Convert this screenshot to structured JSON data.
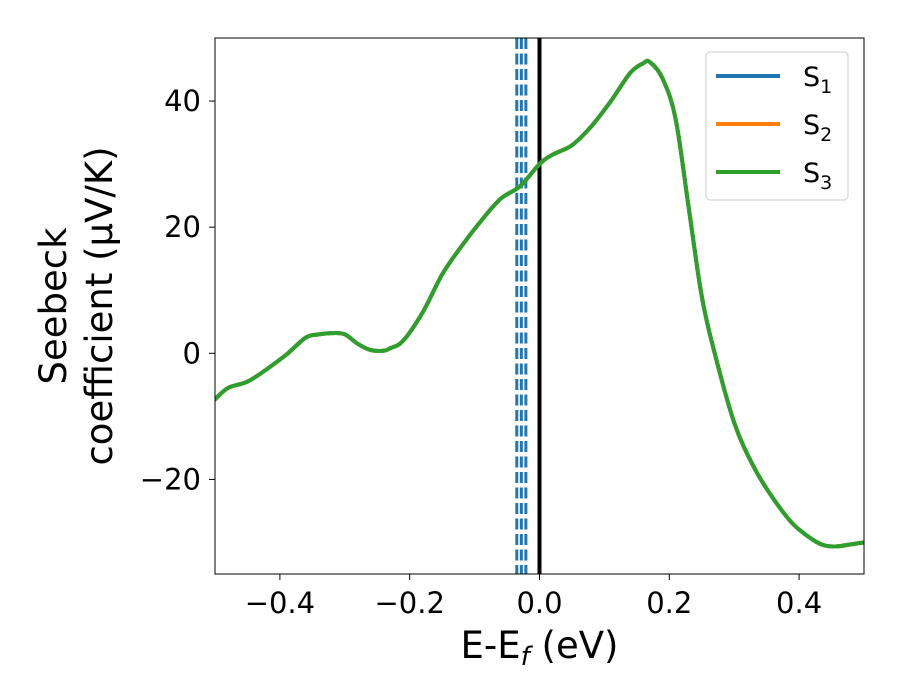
{
  "chart_data": {
    "type": "line",
    "xlabel": {
      "main": "E-E",
      "sub": "f",
      "unit": " (eV)"
    },
    "ylabel": {
      "line1": "Seebeck",
      "line2": "coefficient  (μV/K)"
    },
    "xlim": [
      -0.5,
      0.5
    ],
    "ylim": [
      -35,
      50
    ],
    "xticks": [
      -0.4,
      -0.2,
      0.0,
      0.2,
      0.4
    ],
    "xtick_labels": [
      "−0.4",
      "−0.2",
      "0.0",
      "0.2",
      "0.4"
    ],
    "yticks": [
      -20,
      0,
      20,
      40
    ],
    "ytick_labels": [
      "−20",
      "0",
      "20",
      "40"
    ],
    "grid": false,
    "legend": {
      "placement": "top-right"
    },
    "series": [
      {
        "name": "S",
        "sub": "1",
        "color": "#1f77b4"
      },
      {
        "name": "S",
        "sub": "2",
        "color": "#ff7f0e"
      },
      {
        "name": "S",
        "sub": "3",
        "color": "#2ca02c"
      }
    ],
    "curve": {
      "x": [
        -0.5,
        -0.48,
        -0.45,
        -0.42,
        -0.39,
        -0.36,
        -0.34,
        -0.32,
        -0.3,
        -0.28,
        -0.26,
        -0.24,
        -0.23,
        -0.21,
        -0.18,
        -0.15,
        -0.12,
        -0.09,
        -0.06,
        -0.03,
        0.0,
        0.02,
        0.05,
        0.08,
        0.11,
        0.14,
        0.16,
        0.17,
        0.19,
        0.21,
        0.23,
        0.25,
        0.27,
        0.3,
        0.33,
        0.36,
        0.39,
        0.42,
        0.44,
        0.46,
        0.48,
        0.5
      ],
      "y": [
        -7.3,
        -5.5,
        -4.5,
        -2.5,
        -0.2,
        2.5,
        3.0,
        3.2,
        3.0,
        1.5,
        0.5,
        0.4,
        0.8,
        2.0,
        6.5,
        12.5,
        17.0,
        21.0,
        24.5,
        26.5,
        30.0,
        31.5,
        33.0,
        36.0,
        40.0,
        44.5,
        46.0,
        46.2,
        43.5,
        37.0,
        23.0,
        9.0,
        0.0,
        -11.0,
        -18.0,
        -23.0,
        -27.0,
        -29.5,
        -30.5,
        -30.6,
        -30.3,
        -30.0
      ]
    },
    "vertical_lines": [
      {
        "x": 0.0,
        "style": "solid",
        "color": "#000000"
      },
      {
        "x": -0.035,
        "style": "dashed",
        "color": "#1f77b4"
      },
      {
        "x": -0.028,
        "style": "dashed",
        "color": "#1f77b4"
      },
      {
        "x": -0.021,
        "style": "dashed",
        "color": "#1f77b4"
      }
    ]
  }
}
